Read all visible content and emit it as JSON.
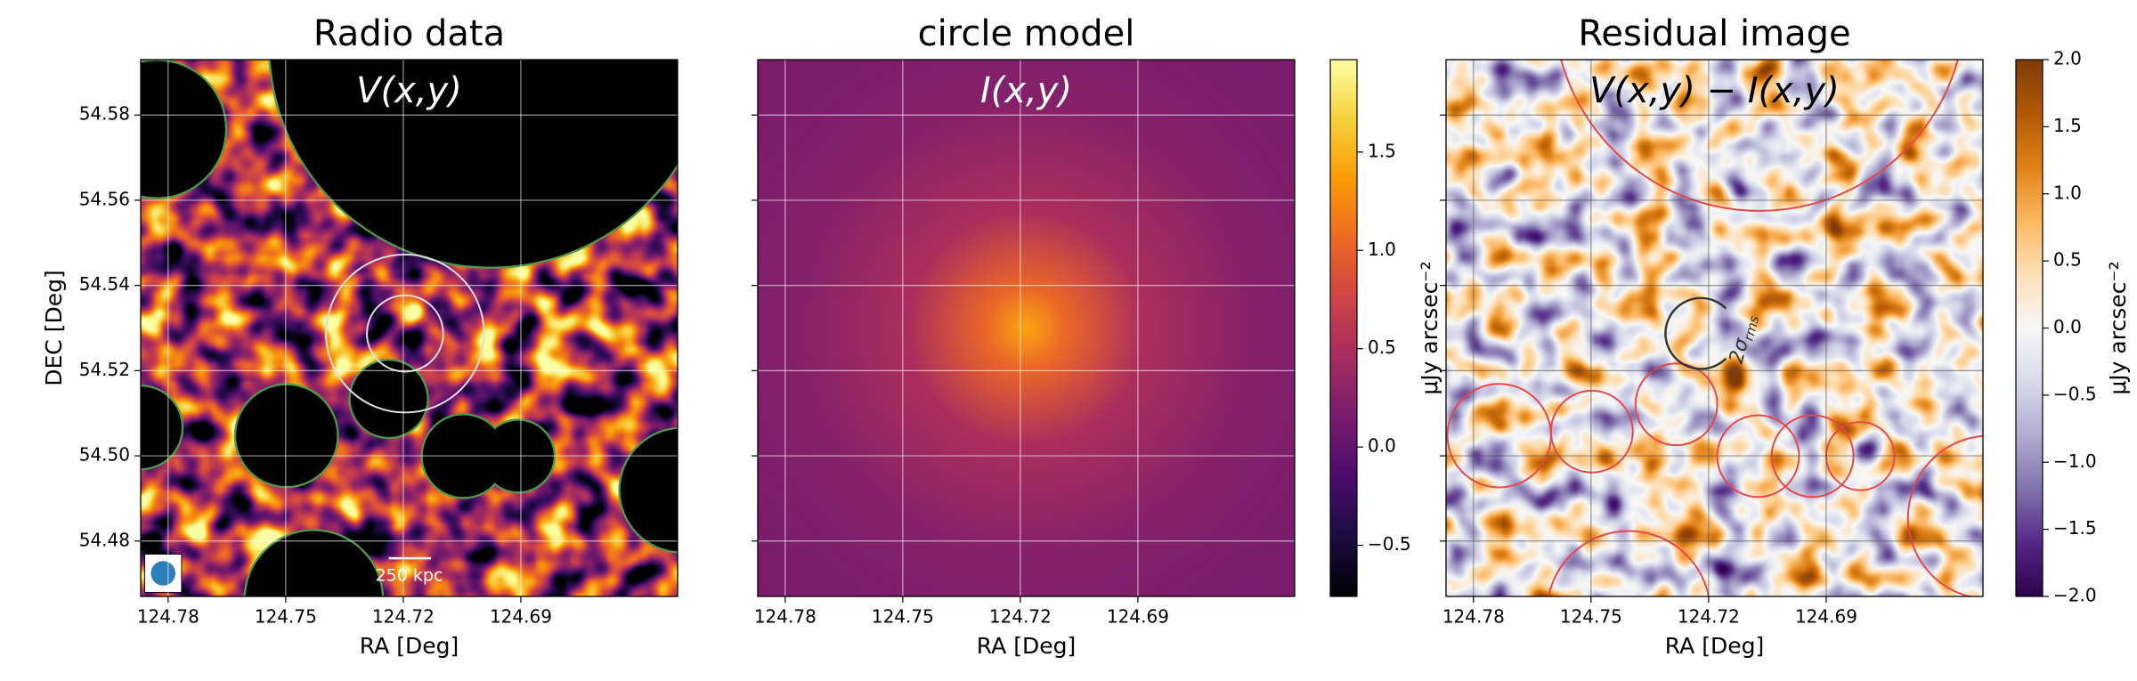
{
  "chart_data": [
    {
      "type": "image",
      "title": "Radio data",
      "annotation": "V(x,y)",
      "scale_bar": "250 kpc",
      "xlabel": "RA [Deg]",
      "ylabel": "DEC [Deg]",
      "xlim": [
        124.787,
        124.65
      ],
      "ylim": [
        54.467,
        54.593
      ],
      "xticks": [
        124.78,
        124.75,
        124.72,
        124.69
      ],
      "yticks": [
        54.48,
        {
          "value": 54.5,
          "label": "54.50"
        },
        54.52,
        54.54,
        54.56,
        54.58
      ],
      "grid": true,
      "grid_color": "#ffffff",
      "mask_color": "#4f9a4a",
      "colormap": [
        "#000004",
        "#1b0c41",
        "#4a0c6b",
        "#781c6d",
        "#a52c60",
        "#cf4446",
        "#ed6925",
        "#fb9b06",
        "#f7d13d",
        "#fcffa4"
      ]
    },
    {
      "type": "image",
      "title": "circle model",
      "annotation": "I(x,y)",
      "xlabel": "RA [Deg]",
      "xlim": [
        124.787,
        124.65
      ],
      "ylim": [
        54.467,
        54.593
      ],
      "xticks": [
        124.78,
        124.75,
        124.72,
        124.69
      ],
      "grid": true,
      "grid_color": "#ffffff",
      "colormap": [
        "#000004",
        "#1b0c41",
        "#4a0c6b",
        "#781c6d",
        "#a52c60",
        "#cf4446",
        "#ed6925",
        "#fb9b06",
        "#f7d13d",
        "#fcffa4"
      ],
      "colorbar": {
        "label": "μJy arcsec⁻²",
        "clim": [
          -0.76,
          1.97
        ],
        "ticks": [
          {
            "value": -0.5,
            "label": "−0.5"
          },
          {
            "value": 0,
            "label": "0.0"
          },
          0.5,
          {
            "value": 1,
            "label": "1.0"
          },
          1.5
        ]
      }
    },
    {
      "type": "image",
      "title": "Residual image",
      "annotation": "V(x,y) − I(x,y)",
      "sigma_label": "2σ",
      "sigma_label_sub": "rms",
      "xlabel": "RA [Deg]",
      "xlim": [
        124.787,
        124.65
      ],
      "ylim": [
        54.467,
        54.593
      ],
      "xticks": [
        124.78,
        124.75,
        124.72,
        124.69
      ],
      "grid": true,
      "grid_color": "#555555",
      "mask_color": "#e8474a",
      "colormap": [
        "#2d004b",
        "#542788",
        "#8073ac",
        "#b2abd2",
        "#d8daeb",
        "#f7f7f7",
        "#fee0b6",
        "#fdb863",
        "#e08214",
        "#b35806",
        "#7f3b08"
      ],
      "colorbar": {
        "label": "μJy arcsec⁻²",
        "clim": [
          -2,
          2
        ],
        "ticks": [
          {
            "value": -2,
            "label": "−2.0"
          },
          {
            "value": -1.5,
            "label": "−1.5"
          },
          {
            "value": -1,
            "label": "−1.0"
          },
          {
            "value": -0.5,
            "label": "−0.5"
          },
          {
            "value": 0,
            "label": "0.0"
          },
          0.5,
          {
            "value": 1,
            "label": "1.0"
          },
          1.5,
          {
            "value": 2,
            "label": "2.0"
          }
        ]
      }
    }
  ]
}
